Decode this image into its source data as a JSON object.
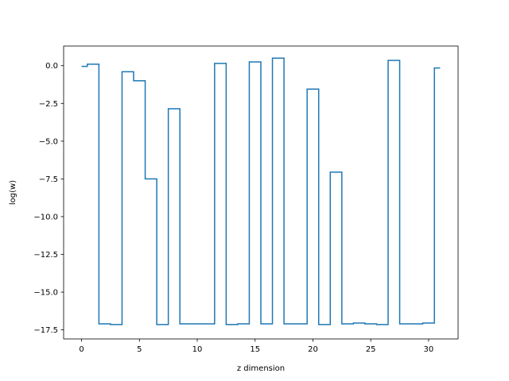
{
  "chart_data": {
    "type": "line",
    "drawstyle": "steps-mid",
    "title": "",
    "xlabel": "z dimension",
    "ylabel": "log(w)",
    "xlim": [
      -1.55,
      32.55
    ],
    "ylim": [
      -18.1,
      1.3
    ],
    "xticks": [
      0,
      5,
      10,
      15,
      20,
      25,
      30
    ],
    "xtick_labels": [
      "0",
      "5",
      "10",
      "15",
      "20",
      "25",
      "30"
    ],
    "yticks": [
      0.0,
      -2.5,
      -5.0,
      -7.5,
      -10.0,
      -12.5,
      -15.0,
      -17.5
    ],
    "ytick_labels": [
      "0.0",
      "−2.5",
      "−5.0",
      "−7.5",
      "−10.0",
      "−12.5",
      "−15.0",
      "−17.5"
    ],
    "grid": false,
    "legend": "none",
    "series": [
      {
        "color": "#1f77b4",
        "x": [
          0,
          1,
          2,
          3,
          4,
          5,
          6,
          7,
          8,
          9,
          10,
          11,
          12,
          13,
          14,
          15,
          16,
          17,
          18,
          19,
          20,
          21,
          22,
          23,
          24,
          25,
          26,
          27,
          28,
          29,
          30,
          31
        ],
        "values": [
          -0.05,
          0.1,
          -17.1,
          -17.15,
          -0.4,
          -1.0,
          -7.5,
          -17.15,
          -2.85,
          -17.1,
          -17.1,
          -17.1,
          0.15,
          -17.15,
          -17.1,
          0.25,
          -17.1,
          0.5,
          -17.1,
          -17.1,
          -1.55,
          -17.15,
          -7.05,
          -17.1,
          -17.05,
          -17.1,
          -17.15,
          0.35,
          -17.1,
          -17.1,
          -17.05,
          -0.15
        ]
      }
    ]
  }
}
